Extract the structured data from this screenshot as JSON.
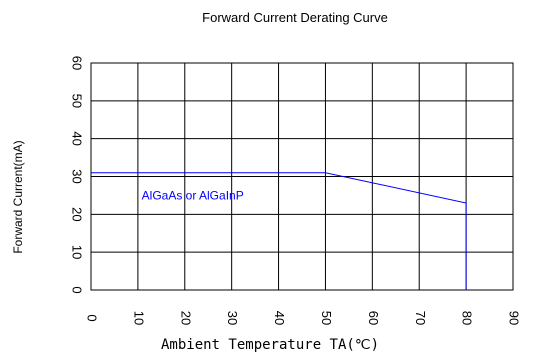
{
  "chart_data": {
    "type": "line",
    "title": "Forward Current Derating Curve",
    "xlabel": "Ambient Temperature TA(℃)",
    "ylabel": "Forward Current(mA)",
    "x_ticks": [
      "0",
      "10",
      "20",
      "30",
      "40",
      "50",
      "60",
      "70",
      "80",
      "90"
    ],
    "y_ticks": [
      "0",
      "10",
      "20",
      "30",
      "40",
      "50",
      "60"
    ],
    "xlim": [
      0,
      90
    ],
    "ylim": [
      0,
      60
    ],
    "grid": true,
    "annotation": {
      "text": "AlGaAs or AlGaInP",
      "x": 30,
      "y": 25,
      "color": "#0000ff"
    },
    "series": [
      {
        "name": "",
        "color": "#0000ff",
        "x": [
          0,
          50,
          80,
          80
        ],
        "y": [
          31,
          31,
          23,
          0
        ]
      }
    ]
  }
}
